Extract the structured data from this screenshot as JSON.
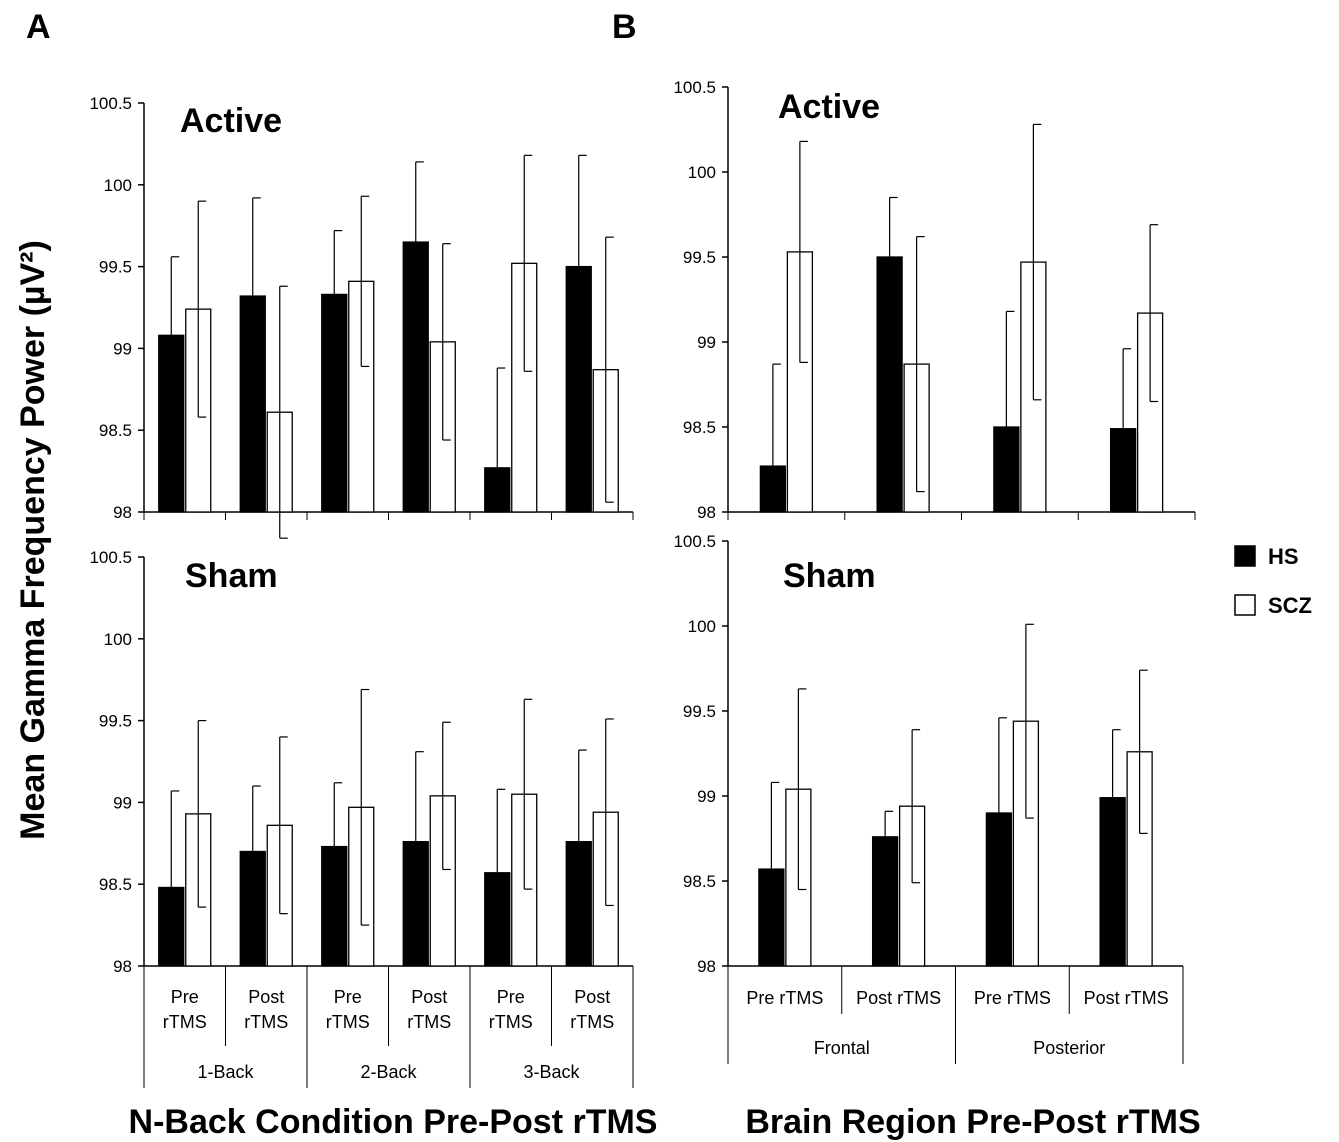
{
  "panels": [
    "A",
    "B"
  ],
  "axis": {
    "ylabel": "Mean Gamma Frequency  Power (µV²)",
    "xlabel_A": "N-Back Condition Pre-Post rTMS",
    "xlabel_B": "Brain Region Pre-Post rTMS"
  },
  "legend": [
    {
      "name": "HS",
      "fill": "#000000"
    },
    {
      "name": "SCZ",
      "fill": "#ffffff"
    }
  ],
  "colors": {
    "HS": "#000000",
    "SCZ": "#ffffff",
    "axis": "#000000"
  },
  "chart_data": [
    {
      "type": "bar",
      "panel": "A",
      "title": "Active",
      "ylim": [
        98,
        100.5
      ],
      "yticks": [
        "98",
        "98.5",
        "99",
        "99.5",
        "100",
        "100.5"
      ],
      "categories": [
        "Pre rTMS",
        "Post rTMS",
        "Pre rTMS",
        "Post rTMS",
        "Pre rTMS",
        "Post rTMS"
      ],
      "groups": [
        "1-Back",
        "2-Back",
        "3-Back"
      ],
      "series": [
        {
          "name": "HS",
          "values": [
            99.08,
            99.32,
            99.33,
            99.65,
            98.27,
            99.5
          ],
          "errors": [
            0.48,
            0.6,
            0.39,
            0.49,
            0.61,
            0.68
          ]
        },
        {
          "name": "SCZ",
          "values": [
            99.24,
            98.61,
            99.41,
            99.04,
            99.52,
            98.87
          ],
          "errors": [
            0.66,
            0.77,
            0.52,
            0.6,
            0.66,
            0.81
          ]
        }
      ]
    },
    {
      "type": "bar",
      "panel": "A",
      "title": "Sham",
      "ylim": [
        98,
        100.5
      ],
      "yticks": [
        "98",
        "98.5",
        "99",
        "99.5",
        "100",
        "100.5"
      ],
      "categories": [
        "Pre rTMS",
        "Post rTMS",
        "Pre rTMS",
        "Post rTMS",
        "Pre rTMS",
        "Post rTMS"
      ],
      "groups": [
        "1-Back",
        "2-Back",
        "3-Back"
      ],
      "series": [
        {
          "name": "HS",
          "values": [
            98.48,
            98.7,
            98.73,
            98.76,
            98.57,
            98.76
          ],
          "errors": [
            0.59,
            0.4,
            0.39,
            0.55,
            0.51,
            0.56
          ]
        },
        {
          "name": "SCZ",
          "values": [
            98.93,
            98.86,
            98.97,
            99.04,
            99.05,
            98.94
          ],
          "errors": [
            0.57,
            0.54,
            0.72,
            0.45,
            0.58,
            0.57
          ]
        }
      ]
    },
    {
      "type": "bar",
      "panel": "B",
      "title": "Active",
      "ylim": [
        98,
        100.5
      ],
      "yticks": [
        "98",
        "98.5",
        "99",
        "99.5",
        "100",
        "100.5"
      ],
      "categories": [
        "Pre rTMS",
        "Post rTMS",
        "Pre rTMS",
        "Post rTMS"
      ],
      "groups": [
        "Frontal",
        "Posterior"
      ],
      "series": [
        {
          "name": "HS",
          "values": [
            98.27,
            99.5,
            98.5,
            98.49
          ],
          "errors": [
            0.6,
            0.35,
            0.68,
            0.47
          ]
        },
        {
          "name": "SCZ",
          "values": [
            99.53,
            98.87,
            99.47,
            99.17
          ],
          "errors": [
            0.65,
            0.75,
            0.81,
            0.52
          ]
        }
      ]
    },
    {
      "type": "bar",
      "panel": "B",
      "title": "Sham",
      "ylim": [
        98,
        100.5
      ],
      "yticks": [
        "98",
        "98.5",
        "99",
        "99.5",
        "100",
        "100.5"
      ],
      "categories": [
        "Pre rTMS",
        "Post rTMS",
        "Pre rTMS",
        "Post rTMS"
      ],
      "groups": [
        "Frontal",
        "Posterior"
      ],
      "series": [
        {
          "name": "HS",
          "values": [
            98.57,
            98.76,
            98.9,
            98.99
          ],
          "errors": [
            0.51,
            0.15,
            0.56,
            0.4
          ]
        },
        {
          "name": "SCZ",
          "values": [
            99.04,
            98.94,
            99.44,
            99.26
          ],
          "errors": [
            0.59,
            0.45,
            0.57,
            0.48
          ]
        }
      ]
    }
  ]
}
